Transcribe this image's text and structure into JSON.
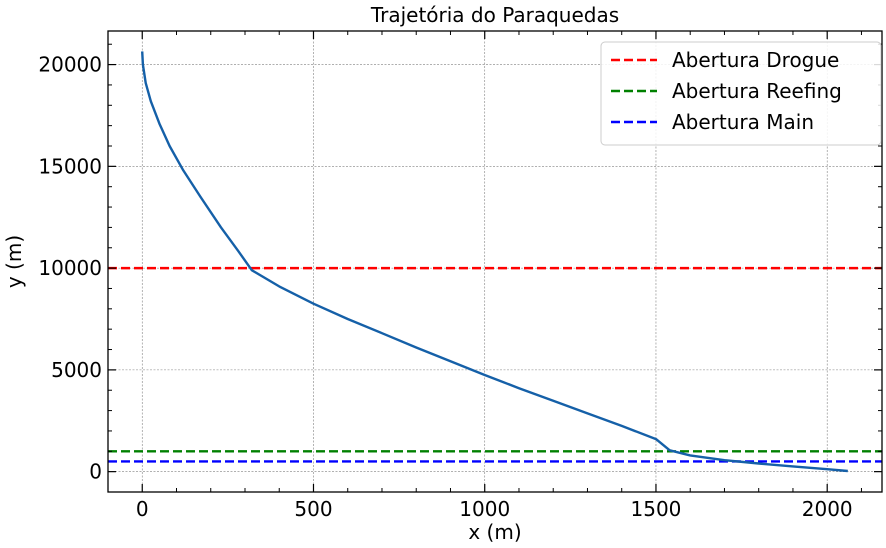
{
  "chart_data": {
    "type": "line",
    "title": "Trajetória do Paraquedas",
    "xlabel": "x (m)",
    "ylabel": "y (m)",
    "xlim": [
      -100,
      2160
    ],
    "ylim": [
      -1000,
      21650
    ],
    "grid": true,
    "legend_position": "top-right",
    "x_ticks": [
      0,
      500,
      1000,
      1500,
      2000
    ],
    "y_ticks": [
      0,
      5000,
      10000,
      15000,
      20000
    ],
    "x_tick_labels": [
      "0",
      "500",
      "1000",
      "1500",
      "2000"
    ],
    "y_tick_labels": [
      "0",
      "5000",
      "10000",
      "15000",
      "20000"
    ],
    "series": [
      {
        "color": "#1560a8",
        "x": [
          0,
          2,
          10,
          25,
          50,
          80,
          120,
          170,
          230,
          280,
          320,
          400,
          500,
          600,
          700,
          800,
          900,
          1000,
          1100,
          1200,
          1300,
          1400,
          1500,
          1540,
          1600,
          1700,
          1800,
          1900,
          2000,
          2060
        ],
        "y": [
          20650,
          20000,
          19100,
          18200,
          17100,
          16000,
          14800,
          13500,
          12000,
          10850,
          9900,
          9100,
          8250,
          7500,
          6800,
          6100,
          5420,
          4750,
          4100,
          3480,
          2860,
          2250,
          1600,
          1050,
          800,
          560,
          400,
          260,
          120,
          30
        ]
      }
    ],
    "hlines": [
      {
        "name": "Abertura Drogue",
        "y": 10000,
        "color": "#ff0000"
      },
      {
        "name": "Abertura Reefing",
        "y": 1000,
        "color": "#008000"
      },
      {
        "name": "Abertura Main",
        "y": 500,
        "color": "#0000ff"
      }
    ]
  }
}
